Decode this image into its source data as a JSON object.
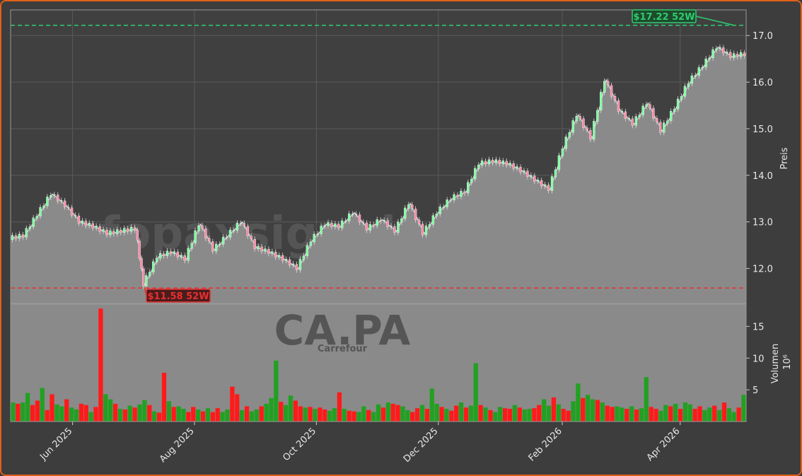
{
  "watermark": {
    "site": "fopaxsignale.trade",
    "ticker": "CA.PA",
    "company": "Carrefour"
  },
  "colors": {
    "up": "#22a022",
    "down": "#ff1a1a",
    "high_line": "#2ecc71",
    "low_line": "#e83030",
    "area": "#8a8a8a",
    "panel_bg": "#404040",
    "frame": "#e0601a"
  },
  "chart_data": [
    {
      "type": "line",
      "panel": "price",
      "ylabel": "Preis",
      "ylim": [
        11.25,
        17.55
      ],
      "yticks": [
        "12.0",
        "13.0",
        "14.0",
        "15.0",
        "16.0",
        "17.0"
      ],
      "grid": true,
      "x_start": "2025-05-01",
      "x_end": "2026-05-04",
      "x": [
        "2025-05-01",
        "2025-05-08",
        "2025-05-15",
        "2025-05-22",
        "2025-05-29",
        "2025-06-05",
        "2025-06-12",
        "2025-06-19",
        "2025-06-26",
        "2025-07-03",
        "2025-07-07",
        "2025-07-14",
        "2025-07-21",
        "2025-07-28",
        "2025-08-04",
        "2025-08-11",
        "2025-08-18",
        "2025-08-25",
        "2025-09-01",
        "2025-09-08",
        "2025-09-15",
        "2025-09-22",
        "2025-09-29",
        "2025-10-06",
        "2025-10-13",
        "2025-10-20",
        "2025-10-27",
        "2025-11-03",
        "2025-11-10",
        "2025-11-17",
        "2025-11-24",
        "2025-12-01",
        "2025-12-08",
        "2025-12-15",
        "2025-12-22",
        "2025-12-29",
        "2026-01-05",
        "2026-01-12",
        "2026-01-19",
        "2026-01-26",
        "2026-02-02",
        "2026-02-09",
        "2026-02-16",
        "2026-02-23",
        "2026-03-02",
        "2026-03-09",
        "2026-03-16",
        "2026-03-23",
        "2026-03-30",
        "2026-04-06",
        "2026-04-13",
        "2026-04-20",
        "2026-04-27",
        "2026-05-04"
      ],
      "close": [
        12.65,
        12.7,
        13.15,
        13.6,
        13.35,
        13.0,
        12.9,
        12.75,
        12.8,
        12.85,
        11.65,
        12.25,
        12.35,
        12.2,
        12.95,
        12.4,
        12.7,
        13.0,
        12.45,
        12.35,
        12.2,
        12.0,
        12.6,
        12.95,
        12.9,
        13.2,
        12.85,
        13.05,
        12.8,
        13.4,
        12.75,
        13.2,
        13.5,
        13.65,
        14.25,
        14.3,
        14.25,
        14.1,
        13.9,
        13.7,
        14.6,
        15.3,
        14.8,
        16.05,
        15.4,
        15.1,
        15.55,
        14.95,
        15.45,
        16.0,
        16.35,
        16.75,
        16.55,
        16.6
      ],
      "annotations": [
        {
          "text": "$17.22 52W",
          "value": 17.22,
          "date": "2026-04-28",
          "kind": "high"
        },
        {
          "text": "$11.58 52W",
          "value": 11.58,
          "date": "2025-07-07",
          "kind": "low"
        }
      ]
    },
    {
      "type": "bar",
      "panel": "volume",
      "ylabel": "Volumen",
      "yunit": "10⁶",
      "ylim": [
        0,
        18.5
      ],
      "yticks": [
        "5",
        "10",
        "15"
      ],
      "values": [
        3,
        2.8,
        3,
        4.5,
        2.6,
        3.3,
        5.3,
        1.8,
        4.3,
        2.7,
        2.4,
        3.5,
        2.2,
        1.9,
        2.8,
        2.6,
        1.5,
        2.3,
        17.8,
        4.3,
        3.5,
        2.8,
        2.0,
        1.9,
        2.5,
        2.2,
        2.7,
        3.4,
        2.6,
        1.6,
        1.4,
        7.7,
        3.2,
        2.3,
        2.4,
        2.0,
        1.5,
        2.3,
        1.9,
        1.6,
        2.1,
        1.5,
        2.1,
        1.5,
        1.9,
        5.5,
        4.3,
        1.8,
        2.4,
        1.6,
        1.9,
        2.4,
        2.8,
        3.7,
        9.6,
        3.1,
        2.6,
        4.1,
        3.3,
        2.4,
        2.2,
        2.3,
        2.0,
        2.2,
        1.9,
        1.7,
        2.1,
        4.6,
        2.0,
        1.7,
        1.6,
        1.5,
        2.4,
        1.8,
        1.5,
        2.7,
        2.2,
        3.0,
        2.8,
        2.6,
        2.4,
        1.8,
        1.5,
        2.1,
        2.6,
        2.0,
        5.2,
        2.8,
        2.3,
        2.0,
        1.7,
        2.5,
        3.0,
        2.2,
        2.5,
        9.2,
        2.6,
        2.2,
        1.8,
        1.5,
        2.3,
        2.1,
        2.0,
        2.6,
        2.2,
        1.9,
        2.0,
        2.1,
        2.6,
        3.5,
        2.5,
        3.8,
        2.7,
        2.0,
        1.7,
        3.2,
        6.0,
        3.7,
        4.2,
        3.5,
        3.4,
        3.0,
        2.5,
        2.3,
        2.4,
        2.2,
        2.0,
        2.4,
        1.9,
        2.1,
        7.0,
        2.3,
        2.0,
        1.7,
        2.6,
        2.4,
        2.8,
        2.0,
        3.0,
        2.7,
        2.0,
        2.4,
        1.8,
        2.2,
        2.5,
        1.8,
        3.0,
        2.1,
        1.5,
        2.2,
        4.2
      ],
      "up_flags": [
        1,
        0,
        1,
        1,
        0,
        0,
        1,
        0,
        0,
        1,
        1,
        0,
        1,
        1,
        0,
        0,
        1,
        0,
        0,
        1,
        1,
        0,
        1,
        0,
        1,
        0,
        1,
        1,
        0,
        1,
        0,
        0,
        1,
        0,
        1,
        1,
        0,
        0,
        1,
        0,
        1,
        0,
        0,
        1,
        1,
        0,
        0,
        1,
        0,
        1,
        1,
        0,
        1,
        1,
        1,
        0,
        1,
        1,
        0,
        0,
        1,
        0,
        1,
        0,
        0,
        1,
        1,
        0,
        1,
        0,
        0,
        1,
        1,
        0,
        1,
        1,
        0,
        1,
        0,
        0,
        1,
        1,
        0,
        0,
        1,
        0,
        1,
        1,
        0,
        1,
        0,
        0,
        1,
        0,
        1,
        1,
        0,
        1,
        0,
        1,
        1,
        0,
        0,
        1,
        0,
        1,
        1,
        0,
        0,
        1,
        1,
        0,
        1,
        0,
        0,
        1,
        1,
        0,
        1,
        1,
        0,
        1,
        0,
        0,
        1,
        1,
        0,
        1,
        0,
        1,
        1,
        0,
        0,
        1,
        1,
        0,
        1,
        0,
        1,
        1,
        0,
        0,
        1,
        1,
        0,
        1,
        0,
        1,
        1,
        0,
        1
      ]
    }
  ],
  "x_axis": {
    "tick_labels": [
      "Jun 2025",
      "Aug 2025",
      "Oct 2025",
      "Dec 2025",
      "Feb 2026",
      "Apr 2026"
    ],
    "tick_dates": [
      "2025-06-01",
      "2025-08-01",
      "2025-10-01",
      "2025-12-01",
      "2026-02-01",
      "2026-04-01"
    ]
  }
}
